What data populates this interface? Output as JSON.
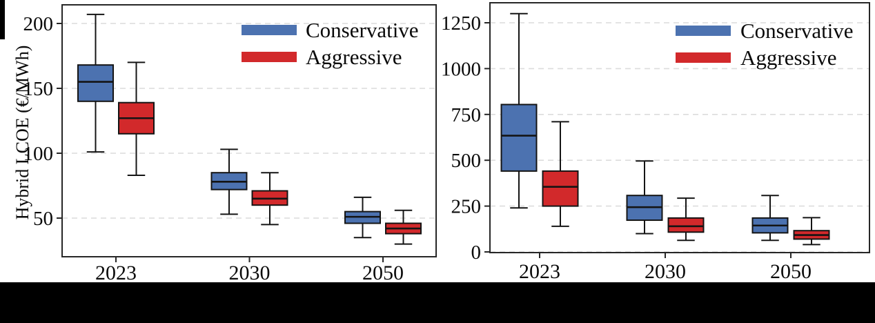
{
  "figure_title": "",
  "legend": {
    "conservative_label": "Conservative",
    "aggressive_label": "Aggressive"
  },
  "colors": {
    "conservative": "#4C72B0",
    "aggressive": "#D2292B",
    "grid": "#DCDCDC",
    "spine": "#262626",
    "text": "#0a0a0a"
  },
  "chart_data": [
    {
      "type": "boxplot",
      "title": "",
      "ylabel": "Hybrid LCOE (€/MWh)",
      "xlabel": "",
      "categories": [
        "2023",
        "2030",
        "2050"
      ],
      "yticks": [
        50,
        100,
        150,
        200
      ],
      "ylim": [
        20,
        214
      ],
      "grid": "horizontal-dashed",
      "legend_position": "upper right",
      "series": [
        {
          "name": "Conservative",
          "color": "#4C72B0",
          "boxes": [
            {
              "whislo": 101,
              "q1": 140,
              "med": 155,
              "q3": 168,
              "whishi": 207
            },
            {
              "whislo": 53,
              "q1": 72,
              "med": 78,
              "q3": 85,
              "whishi": 103
            },
            {
              "whislo": 35,
              "q1": 46,
              "med": 51,
              "q3": 55,
              "whishi": 66
            }
          ]
        },
        {
          "name": "Aggressive",
          "color": "#D2292B",
          "boxes": [
            {
              "whislo": 83,
              "q1": 115,
              "med": 127,
              "q3": 139,
              "whishi": 170
            },
            {
              "whislo": 45,
              "q1": 60,
              "med": 65,
              "q3": 71,
              "whishi": 85
            },
            {
              "whislo": 30,
              "q1": 38,
              "med": 42,
              "q3": 46,
              "whishi": 56
            }
          ]
        }
      ]
    },
    {
      "type": "boxplot",
      "title": "",
      "ylabel": "",
      "xlabel": "",
      "categories": [
        "2023",
        "2030",
        "2050"
      ],
      "yticks": [
        0,
        250,
        500,
        750,
        1000,
        1250
      ],
      "ylim": [
        -4,
        1360
      ],
      "grid": "horizontal-dashed",
      "legend_position": "upper right",
      "series": [
        {
          "name": "Conservative",
          "color": "#4C72B0",
          "boxes": [
            {
              "whislo": 240,
              "q1": 441,
              "med": 634,
              "q3": 804,
              "whishi": 1300
            },
            {
              "whislo": 100,
              "q1": 173,
              "med": 244,
              "q3": 308,
              "whishi": 496
            },
            {
              "whislo": 63,
              "q1": 104,
              "med": 144,
              "q3": 185,
              "whishi": 308
            }
          ]
        },
        {
          "name": "Aggressive",
          "color": "#D2292B",
          "boxes": [
            {
              "whislo": 140,
              "q1": 250,
              "med": 355,
              "q3": 441,
              "whishi": 710
            },
            {
              "whislo": 63,
              "q1": 108,
              "med": 140,
              "q3": 185,
              "whishi": 293
            },
            {
              "whislo": 40,
              "q1": 70,
              "med": 92,
              "q3": 116,
              "whishi": 187
            }
          ]
        }
      ]
    }
  ]
}
